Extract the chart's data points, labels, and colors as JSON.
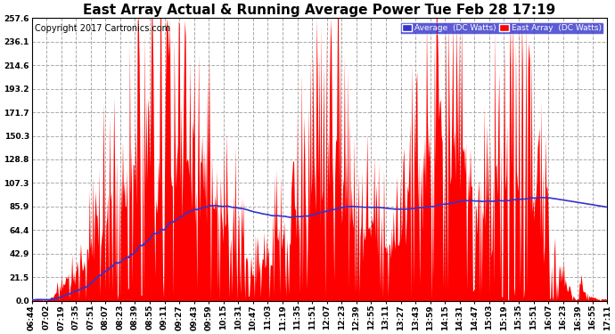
{
  "title": "East Array Actual & Running Average Power Tue Feb 28 17:19",
  "copyright": "Copyright 2017 Cartronics.com",
  "legend_avg": "Average  (DC Watts)",
  "legend_east": "East Array  (DC Watts)",
  "ylabel_values": [
    0.0,
    21.5,
    42.9,
    64.4,
    85.9,
    107.3,
    128.8,
    150.3,
    171.7,
    193.2,
    214.6,
    236.1,
    257.6
  ],
  "ylim": [
    0,
    257.6
  ],
  "bar_color": "#FF0000",
  "avg_color": "#3333CC",
  "background_color": "#FFFFFF",
  "grid_color": "#AAAAAA",
  "title_fontsize": 11,
  "tick_fontsize": 6.5,
  "copyright_fontsize": 7,
  "x_tick_labels": [
    "06:44",
    "07:02",
    "07:19",
    "07:35",
    "07:51",
    "08:07",
    "08:23",
    "08:39",
    "08:55",
    "09:11",
    "09:27",
    "09:43",
    "09:59",
    "10:15",
    "10:31",
    "10:47",
    "11:03",
    "11:19",
    "11:35",
    "11:51",
    "12:07",
    "12:23",
    "12:39",
    "12:55",
    "13:11",
    "13:27",
    "13:43",
    "13:59",
    "14:15",
    "14:31",
    "14:47",
    "15:03",
    "15:19",
    "15:35",
    "15:51",
    "16:07",
    "16:23",
    "16:39",
    "16:55",
    "17:11"
  ],
  "num_points": 660,
  "figwidth": 6.9,
  "figheight": 3.75,
  "dpi": 100
}
